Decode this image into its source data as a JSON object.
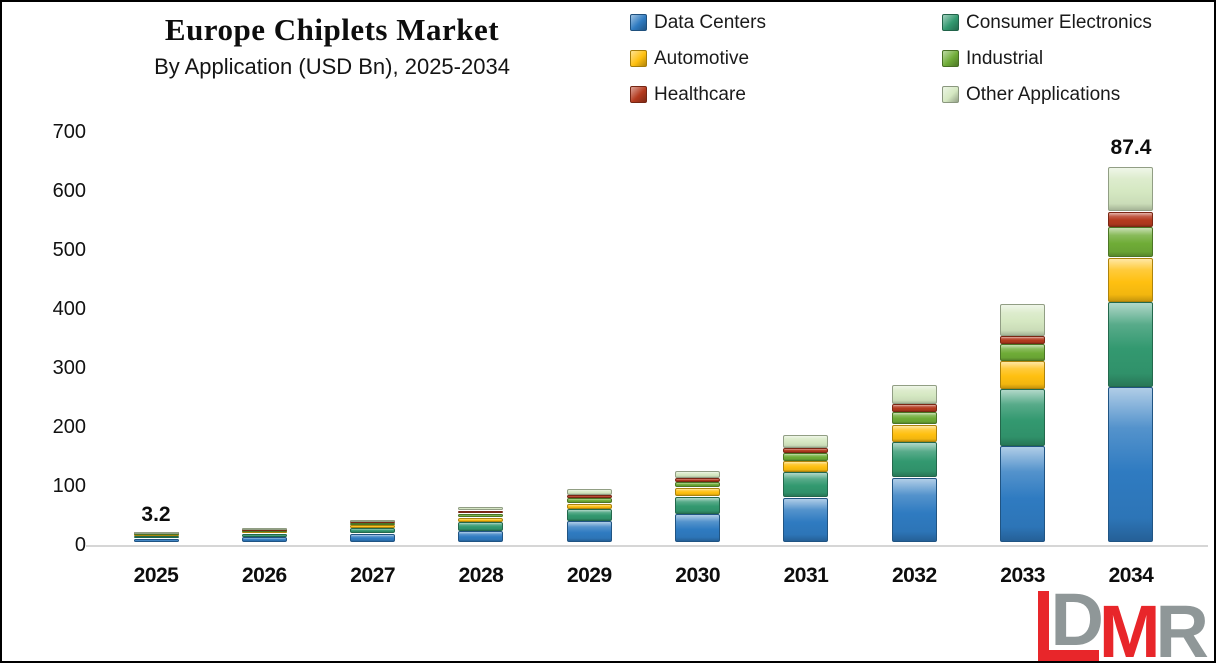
{
  "chart_data": {
    "type": "bar",
    "stacked": true,
    "title": "Europe Chiplets Market",
    "subtitle": "By Application (USD Bn), 2025-2034",
    "unit": "USD Bn",
    "grid": false,
    "legend_position": "top-right",
    "ylim": [
      0,
      700
    ],
    "yticks": [
      0,
      100,
      200,
      300,
      400,
      500,
      600,
      700
    ],
    "categories": [
      "2025",
      "2026",
      "2027",
      "2028",
      "2029",
      "2030",
      "2031",
      "2032",
      "2033",
      "2034"
    ],
    "series": [
      {
        "name": "Data Centers",
        "color": "#2F7BC1",
        "values": [
          6,
          9,
          15,
          19,
          36,
          48,
          76,
          110,
          163,
          263
        ]
      },
      {
        "name": "Consumer Electronics",
        "color": "#339970",
        "values": [
          3.5,
          5.5,
          9,
          15,
          20,
          30,
          43,
          60,
          97,
          144
        ]
      },
      {
        "name": "Automotive",
        "color": "#FFC010",
        "values": [
          2,
          3,
          5,
          8,
          10,
          15,
          19,
          30,
          47,
          76
        ]
      },
      {
        "name": "Industrial",
        "color": "#6FAC37",
        "values": [
          1.5,
          2,
          3.5,
          7,
          9,
          9,
          13,
          21,
          29,
          51
        ]
      },
      {
        "name": "Healthcare",
        "color": "#B43A1E",
        "values": [
          0.8,
          1.2,
          2,
          5,
          5,
          7,
          9,
          13,
          14,
          27
        ]
      },
      {
        "name": "Other Applications",
        "color": "#D5E8C2",
        "values": [
          1.5,
          2.5,
          3.5,
          7,
          10,
          13,
          22,
          33,
          54,
          76
        ]
      }
    ],
    "annotations": [
      {
        "category": "2025",
        "text": "3.2"
      },
      {
        "category": "2034",
        "text": "87.4"
      }
    ]
  },
  "colors": {
    "background": "#ffffff",
    "border": "#000000",
    "axis_line": "#d6d6d6",
    "text": "#1a1a1a",
    "logo_gray": "#8f9798",
    "logo_red": "#e8262a"
  },
  "logo": {
    "letters": [
      "D",
      "M",
      "R"
    ]
  }
}
